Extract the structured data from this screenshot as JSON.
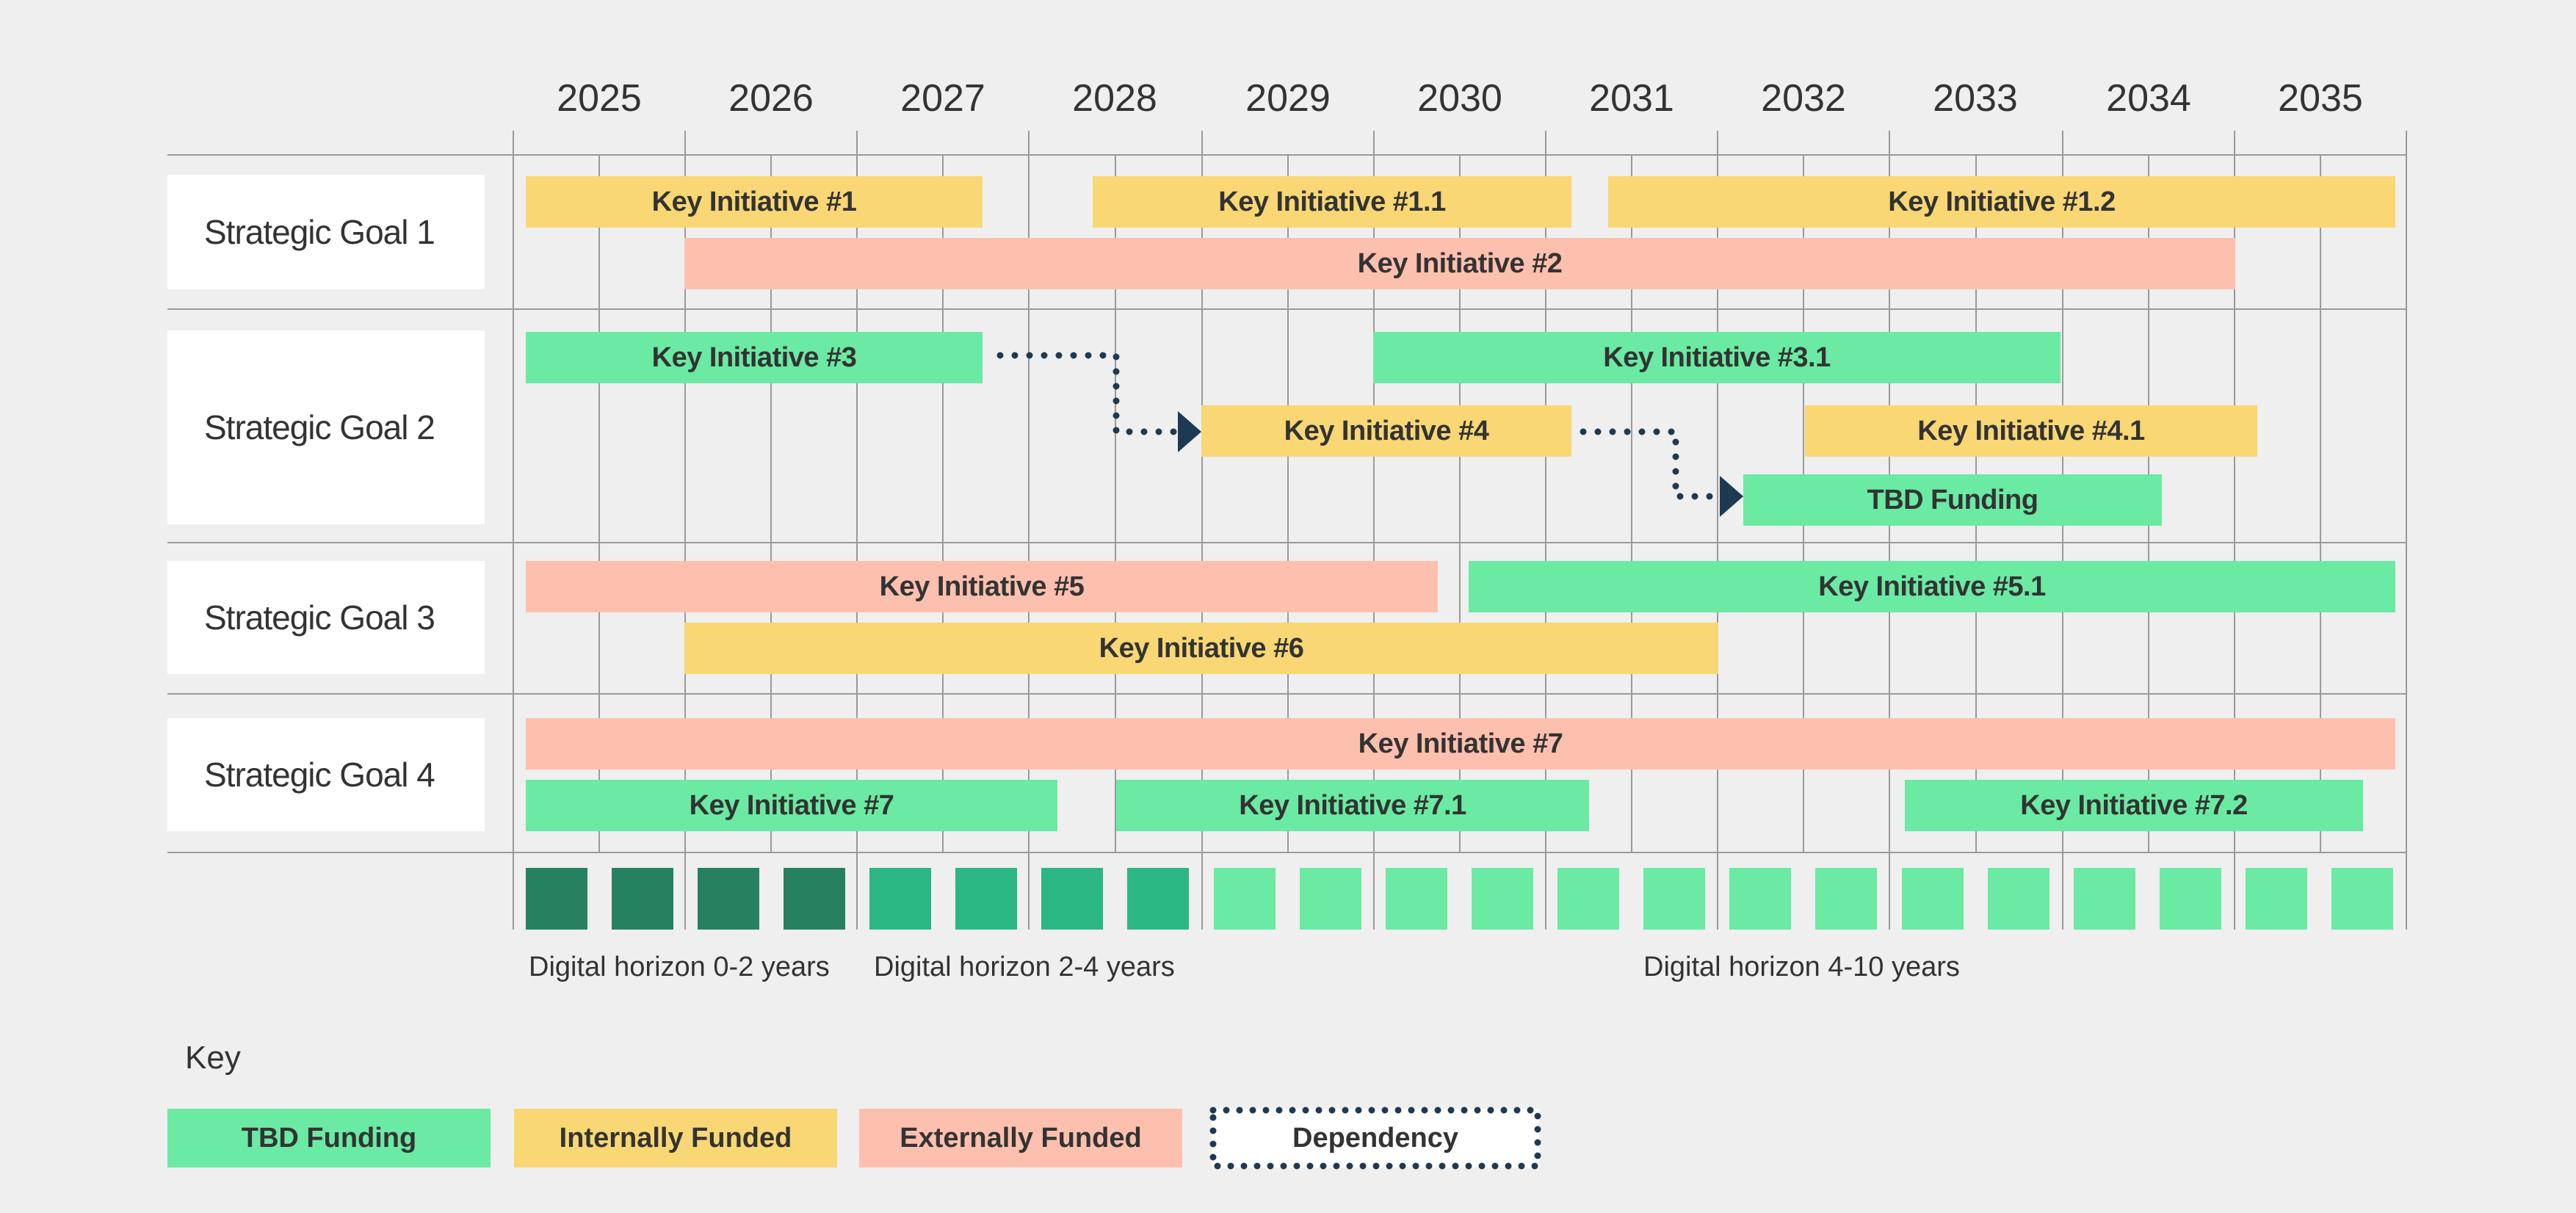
{
  "years": [
    "2025",
    "2026",
    "2027",
    "2028",
    "2029",
    "2030",
    "2031",
    "2032",
    "2033",
    "2034",
    "2035"
  ],
  "goals": [
    "Strategic Goal 1",
    "Strategic Goal 2",
    "Strategic Goal 3",
    "Strategic Goal 4"
  ],
  "initiatives": [
    {
      "label": "Key Initiative #1",
      "funding": "internal"
    },
    {
      "label": "Key Initiative #1.1",
      "funding": "internal"
    },
    {
      "label": "Key Initiative #1.2",
      "funding": "internal"
    },
    {
      "label": "Key Initiative #2",
      "funding": "external"
    },
    {
      "label": "Key Initiative #3",
      "funding": "tbd"
    },
    {
      "label": "Key Initiative #3.1",
      "funding": "tbd"
    },
    {
      "label": "Key Initiative #4",
      "funding": "internal"
    },
    {
      "label": "Key Initiative #4.1",
      "funding": "internal"
    },
    {
      "label": "TBD Funding",
      "funding": "tbd"
    },
    {
      "label": "Key Initiative #5",
      "funding": "external"
    },
    {
      "label": "Key Initiative #5.1",
      "funding": "tbd"
    },
    {
      "label": "Key Initiative #6",
      "funding": "internal"
    },
    {
      "label": "Key Initiative #7",
      "funding": "external"
    },
    {
      "label": "Key Initiative #7",
      "funding": "tbd"
    },
    {
      "label": "Key Initiative #7.1",
      "funding": "tbd"
    },
    {
      "label": "Key Initiative #7.2",
      "funding": "tbd"
    }
  ],
  "horizons": [
    "Digital horizon 0-2 years",
    "Digital horizon 2-4 years",
    "Digital horizon 4-10 years"
  ],
  "key": {
    "title": "Key",
    "tbd": "TBD Funding",
    "internal": "Internally Funded",
    "external": "Externally Funded",
    "dependency": "Dependency"
  },
  "colors": {
    "tbd": "#6aeaa3",
    "internal": "#f8d774",
    "external": "#fec0ae",
    "horizon_near": "#268161",
    "horizon_mid": "#2bb783",
    "horizon_far": "#6aeaa3",
    "dependency": "#1e3a52"
  }
}
